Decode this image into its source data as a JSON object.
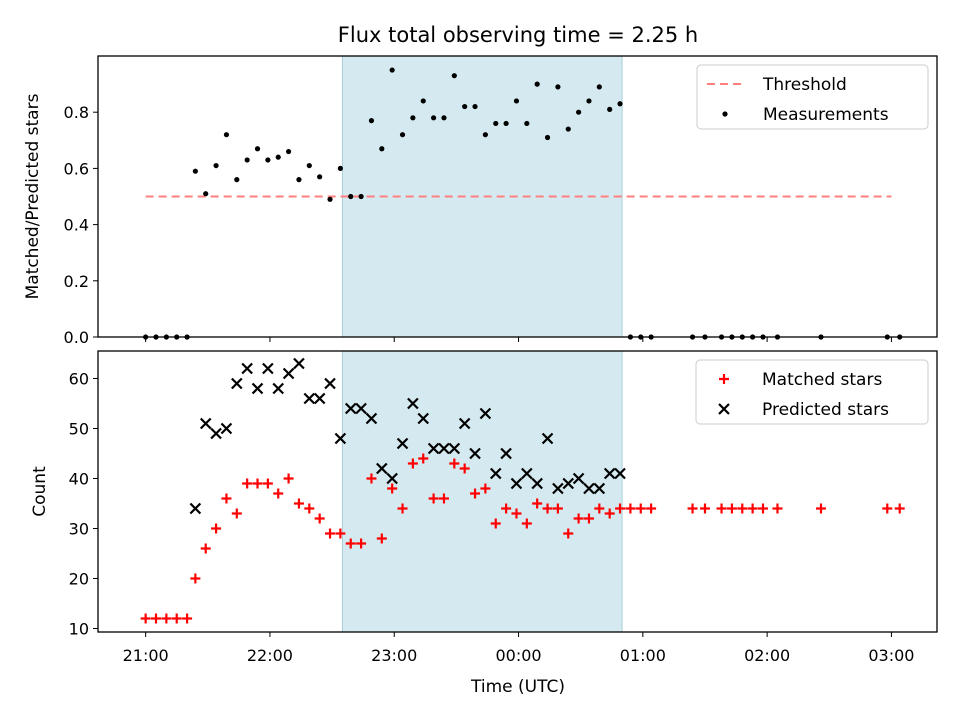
{
  "chart_data": {
    "title": "Flux total observing time = 2.25 h",
    "shaded_interval": {
      "start": "22:35",
      "end": "00:50",
      "color": "#d4eaf0"
    },
    "x_ticks": [
      "21:00",
      "22:00",
      "23:00",
      "00:00",
      "01:00",
      "02:00",
      "03:00"
    ],
    "xlabel": "Time (UTC)",
    "x_range": [
      "20:37",
      "03:22"
    ],
    "panels": [
      {
        "type": "scatter",
        "ylabel": "Matched/Predicted stars",
        "ylim": [
          0,
          1.0
        ],
        "y_ticks": [
          "0.0",
          "0.2",
          "0.4",
          "0.6",
          "0.8"
        ],
        "legend_position": "top-right",
        "series": [
          {
            "name": "Threshold",
            "kind": "line",
            "color": "#ff7f7f",
            "dash": true,
            "points": [
              [
                "21:00",
                0.5
              ],
              [
                "03:00",
                0.5
              ]
            ]
          },
          {
            "name": "Measurements",
            "kind": "dot",
            "color": "#000000",
            "points": [
              [
                "21:00",
                0
              ],
              [
                "21:05",
                0
              ],
              [
                "21:10",
                0
              ],
              [
                "21:15",
                0
              ],
              [
                "21:20",
                0
              ],
              [
                "21:24",
                0.59
              ],
              [
                "21:29",
                0.51
              ],
              [
                "21:34",
                0.61
              ],
              [
                "21:39",
                0.72
              ],
              [
                "21:44",
                0.56
              ],
              [
                "21:49",
                0.63
              ],
              [
                "21:54",
                0.67
              ],
              [
                "21:59",
                0.63
              ],
              [
                "22:04",
                0.64
              ],
              [
                "22:09",
                0.66
              ],
              [
                "22:14",
                0.56
              ],
              [
                "22:19",
                0.61
              ],
              [
                "22:24",
                0.57
              ],
              [
                "22:29",
                0.49
              ],
              [
                "22:34",
                0.6
              ],
              [
                "22:39",
                0.5
              ],
              [
                "22:44",
                0.5
              ],
              [
                "22:49",
                0.77
              ],
              [
                "22:54",
                0.67
              ],
              [
                "22:59",
                0.95
              ],
              [
                "23:04",
                0.72
              ],
              [
                "23:09",
                0.78
              ],
              [
                "23:14",
                0.84
              ],
              [
                "23:19",
                0.78
              ],
              [
                "23:24",
                0.78
              ],
              [
                "23:29",
                0.93
              ],
              [
                "23:34",
                0.82
              ],
              [
                "23:39",
                0.82
              ],
              [
                "23:44",
                0.72
              ],
              [
                "23:49",
                0.76
              ],
              [
                "23:54",
                0.76
              ],
              [
                "23:59",
                0.84
              ],
              [
                "00:04",
                0.76
              ],
              [
                "00:09",
                0.9
              ],
              [
                "00:14",
                0.71
              ],
              [
                "00:19",
                0.89
              ],
              [
                "00:24",
                0.74
              ],
              [
                "00:29",
                0.8
              ],
              [
                "00:34",
                0.84
              ],
              [
                "00:39",
                0.89
              ],
              [
                "00:44",
                0.81
              ],
              [
                "00:49",
                0.83
              ],
              [
                "00:54",
                0
              ],
              [
                "00:59",
                0
              ],
              [
                "01:04",
                0
              ],
              [
                "01:24",
                0
              ],
              [
                "01:30",
                0
              ],
              [
                "01:38",
                0
              ],
              [
                "01:43",
                0
              ],
              [
                "01:48",
                0
              ],
              [
                "01:53",
                0
              ],
              [
                "01:58",
                0
              ],
              [
                "02:05",
                0
              ],
              [
                "02:26",
                0
              ],
              [
                "02:58",
                0
              ],
              [
                "03:04",
                0
              ]
            ]
          }
        ]
      },
      {
        "type": "scatter",
        "ylabel": "Count",
        "ylim": [
          9.3,
          65.5
        ],
        "y_ticks": [
          "10",
          "20",
          "30",
          "40",
          "50",
          "60"
        ],
        "legend_position": "top-right",
        "series": [
          {
            "name": "Matched stars",
            "kind": "plus",
            "color": "#ff0000",
            "points": [
              [
                "21:00",
                12
              ],
              [
                "21:05",
                12
              ],
              [
                "21:10",
                12
              ],
              [
                "21:15",
                12
              ],
              [
                "21:20",
                12
              ],
              [
                "21:24",
                20
              ],
              [
                "21:29",
                26
              ],
              [
                "21:34",
                30
              ],
              [
                "21:39",
                36
              ],
              [
                "21:44",
                33
              ],
              [
                "21:49",
                39
              ],
              [
                "21:54",
                39
              ],
              [
                "21:59",
                39
              ],
              [
                "22:04",
                37
              ],
              [
                "22:09",
                40
              ],
              [
                "22:14",
                35
              ],
              [
                "22:19",
                34
              ],
              [
                "22:24",
                32
              ],
              [
                "22:29",
                29
              ],
              [
                "22:34",
                29
              ],
              [
                "22:39",
                27
              ],
              [
                "22:44",
                27
              ],
              [
                "22:49",
                40
              ],
              [
                "22:54",
                28
              ],
              [
                "22:59",
                38
              ],
              [
                "23:04",
                34
              ],
              [
                "23:09",
                43
              ],
              [
                "23:14",
                44
              ],
              [
                "23:19",
                36
              ],
              [
                "23:24",
                36
              ],
              [
                "23:29",
                43
              ],
              [
                "23:34",
                42
              ],
              [
                "23:39",
                37
              ],
              [
                "23:44",
                38
              ],
              [
                "23:49",
                31
              ],
              [
                "23:54",
                34
              ],
              [
                "23:59",
                33
              ],
              [
                "00:04",
                31
              ],
              [
                "00:09",
                35
              ],
              [
                "00:14",
                34
              ],
              [
                "00:19",
                34
              ],
              [
                "00:24",
                29
              ],
              [
                "00:29",
                32
              ],
              [
                "00:34",
                32
              ],
              [
                "00:39",
                34
              ],
              [
                "00:44",
                33
              ],
              [
                "00:49",
                34
              ],
              [
                "00:54",
                34
              ],
              [
                "00:59",
                34
              ],
              [
                "01:04",
                34
              ],
              [
                "01:24",
                34
              ],
              [
                "01:30",
                34
              ],
              [
                "01:38",
                34
              ],
              [
                "01:43",
                34
              ],
              [
                "01:48",
                34
              ],
              [
                "01:53",
                34
              ],
              [
                "01:58",
                34
              ],
              [
                "02:05",
                34
              ],
              [
                "02:26",
                34
              ],
              [
                "02:58",
                34
              ],
              [
                "03:04",
                34
              ]
            ]
          },
          {
            "name": "Predicted stars",
            "kind": "x",
            "color": "#000000",
            "points": [
              [
                "21:24",
                34
              ],
              [
                "21:29",
                51
              ],
              [
                "21:34",
                49
              ],
              [
                "21:39",
                50
              ],
              [
                "21:44",
                59
              ],
              [
                "21:49",
                62
              ],
              [
                "21:54",
                58
              ],
              [
                "21:59",
                62
              ],
              [
                "22:04",
                58
              ],
              [
                "22:09",
                61
              ],
              [
                "22:14",
                63
              ],
              [
                "22:19",
                56
              ],
              [
                "22:24",
                56
              ],
              [
                "22:29",
                59
              ],
              [
                "22:34",
                48
              ],
              [
                "22:39",
                54
              ],
              [
                "22:44",
                54
              ],
              [
                "22:49",
                52
              ],
              [
                "22:54",
                42
              ],
              [
                "22:59",
                40
              ],
              [
                "23:04",
                47
              ],
              [
                "23:09",
                55
              ],
              [
                "23:14",
                52
              ],
              [
                "23:19",
                46
              ],
              [
                "23:24",
                46
              ],
              [
                "23:29",
                46
              ],
              [
                "23:34",
                51
              ],
              [
                "23:39",
                45
              ],
              [
                "23:44",
                53
              ],
              [
                "23:49",
                41
              ],
              [
                "23:54",
                45
              ],
              [
                "23:59",
                39
              ],
              [
                "00:04",
                41
              ],
              [
                "00:09",
                39
              ],
              [
                "00:14",
                48
              ],
              [
                "00:19",
                38
              ],
              [
                "00:24",
                39
              ],
              [
                "00:29",
                40
              ],
              [
                "00:34",
                38
              ],
              [
                "00:39",
                38
              ],
              [
                "00:44",
                41
              ],
              [
                "00:49",
                41
              ]
            ]
          }
        ]
      }
    ]
  }
}
